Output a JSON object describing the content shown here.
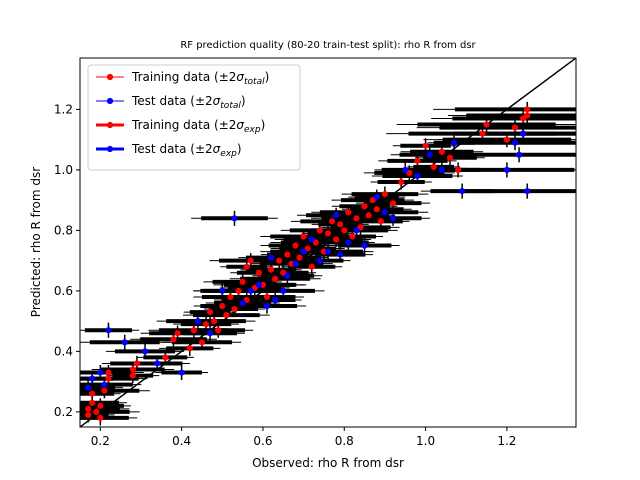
{
  "chart_data": {
    "type": "scatter",
    "title": "RF prediction quality (80-20 train-test split): rho R from dsr",
    "xlabel": "Observed: rho R from dsr",
    "ylabel": "Predicted: rho R from dsr",
    "xlim": [
      0.15,
      1.37
    ],
    "ylim": [
      0.15,
      1.37
    ],
    "xticks": [
      "0.2",
      "0.4",
      "0.6",
      "0.8",
      "1.0",
      "1.2"
    ],
    "yticks": [
      "0.2",
      "0.4",
      "0.6",
      "0.8",
      "1.0",
      "1.2"
    ],
    "legend_position": "upper-left",
    "legend": [
      {
        "label": "Training data (±2σ_total)",
        "main": "Training data (±2",
        "sym": "σ",
        "sub": "total",
        "tail": ")",
        "color": "#ff0000",
        "style": "thin"
      },
      {
        "label": "Test data (±2σ_total)",
        "main": "Test data (±2",
        "sym": "σ",
        "sub": "total",
        "tail": ")",
        "color": "#0000ff",
        "style": "thin"
      },
      {
        "label": "Training data (±2σ_exp)",
        "main": "Training data (±2",
        "sym": "σ",
        "sub": "exp",
        "tail": ")",
        "color": "#ff0000",
        "style": "thick"
      },
      {
        "label": "Test data (±2σ_exp)",
        "main": "Test data (±2",
        "sym": "σ",
        "sub": "exp",
        "tail": ")",
        "color": "#0000ff",
        "style": "thick"
      }
    ],
    "identity_line": true,
    "series": [
      {
        "name": "Training data",
        "color": "#ff0000",
        "points": [
          [
            0.17,
            0.19
          ],
          [
            0.17,
            0.21
          ],
          [
            0.18,
            0.23
          ],
          [
            0.18,
            0.26
          ],
          [
            0.19,
            0.2
          ],
          [
            0.2,
            0.18
          ],
          [
            0.2,
            0.22
          ],
          [
            0.21,
            0.27
          ],
          [
            0.22,
            0.31
          ],
          [
            0.22,
            0.33
          ],
          [
            0.28,
            0.32
          ],
          [
            0.28,
            0.34
          ],
          [
            0.29,
            0.36
          ],
          [
            0.36,
            0.38
          ],
          [
            0.38,
            0.44
          ],
          [
            0.39,
            0.46
          ],
          [
            0.42,
            0.41
          ],
          [
            0.43,
            0.47
          ],
          [
            0.45,
            0.43
          ],
          [
            0.46,
            0.49
          ],
          [
            0.47,
            0.53
          ],
          [
            0.48,
            0.5
          ],
          [
            0.49,
            0.47
          ],
          [
            0.5,
            0.55
          ],
          [
            0.51,
            0.52
          ],
          [
            0.52,
            0.58
          ],
          [
            0.53,
            0.54
          ],
          [
            0.54,
            0.6
          ],
          [
            0.55,
            0.63
          ],
          [
            0.56,
            0.57
          ],
          [
            0.56,
            0.68
          ],
          [
            0.57,
            0.7
          ],
          [
            0.58,
            0.61
          ],
          [
            0.59,
            0.66
          ],
          [
            0.6,
            0.62
          ],
          [
            0.61,
            0.58
          ],
          [
            0.62,
            0.67
          ],
          [
            0.63,
            0.64
          ],
          [
            0.64,
            0.7
          ],
          [
            0.65,
            0.66
          ],
          [
            0.66,
            0.72
          ],
          [
            0.67,
            0.69
          ],
          [
            0.68,
            0.75
          ],
          [
            0.69,
            0.71
          ],
          [
            0.7,
            0.78
          ],
          [
            0.71,
            0.74
          ],
          [
            0.72,
            0.68
          ],
          [
            0.73,
            0.76
          ],
          [
            0.74,
            0.8
          ],
          [
            0.75,
            0.73
          ],
          [
            0.76,
            0.79
          ],
          [
            0.77,
            0.83
          ],
          [
            0.78,
            0.77
          ],
          [
            0.79,
            0.82
          ],
          [
            0.8,
            0.8
          ],
          [
            0.81,
            0.86
          ],
          [
            0.82,
            0.78
          ],
          [
            0.83,
            0.84
          ],
          [
            0.84,
            0.81
          ],
          [
            0.85,
            0.88
          ],
          [
            0.86,
            0.85
          ],
          [
            0.87,
            0.9
          ],
          [
            0.88,
            0.87
          ],
          [
            0.89,
            0.83
          ],
          [
            0.9,
            0.92
          ],
          [
            0.92,
            0.89
          ],
          [
            0.94,
            0.96
          ],
          [
            0.96,
            0.99
          ],
          [
            0.98,
            1.03
          ],
          [
            1.0,
            1.08
          ],
          [
            1.02,
            1.01
          ],
          [
            1.04,
            1.06
          ],
          [
            1.06,
            1.04
          ],
          [
            1.08,
            1.0
          ],
          [
            1.14,
            1.12
          ],
          [
            1.15,
            1.15
          ],
          [
            1.2,
            1.1
          ],
          [
            1.22,
            1.14
          ],
          [
            1.24,
            1.17
          ],
          [
            1.24,
            1.12
          ],
          [
            1.25,
            1.18
          ],
          [
            1.25,
            1.2
          ]
        ]
      },
      {
        "name": "Test data",
        "color": "#0000ff",
        "points": [
          [
            0.17,
            0.28
          ],
          [
            0.18,
            0.31
          ],
          [
            0.2,
            0.33
          ],
          [
            0.21,
            0.29
          ],
          [
            0.22,
            0.47
          ],
          [
            0.26,
            0.43
          ],
          [
            0.31,
            0.4
          ],
          [
            0.34,
            0.36
          ],
          [
            0.4,
            0.33
          ],
          [
            0.44,
            0.5
          ],
          [
            0.47,
            0.46
          ],
          [
            0.5,
            0.6
          ],
          [
            0.53,
            0.84
          ],
          [
            0.55,
            0.56
          ],
          [
            0.57,
            0.6
          ],
          [
            0.59,
            0.62
          ],
          [
            0.61,
            0.55
          ],
          [
            0.62,
            0.71
          ],
          [
            0.63,
            0.57
          ],
          [
            0.65,
            0.6
          ],
          [
            0.66,
            0.65
          ],
          [
            0.68,
            0.69
          ],
          [
            0.7,
            0.73
          ],
          [
            0.72,
            0.77
          ],
          [
            0.74,
            0.7
          ],
          [
            0.76,
            0.73
          ],
          [
            0.78,
            0.85
          ],
          [
            0.79,
            0.72
          ],
          [
            0.81,
            0.76
          ],
          [
            0.83,
            0.8
          ],
          [
            0.85,
            0.75
          ],
          [
            0.88,
            0.91
          ],
          [
            0.9,
            0.86
          ],
          [
            0.92,
            0.84
          ],
          [
            0.95,
            1.0
          ],
          [
            0.98,
            0.98
          ],
          [
            1.01,
            1.05
          ],
          [
            1.04,
            1.0
          ],
          [
            1.07,
            1.09
          ],
          [
            1.09,
            0.93
          ],
          [
            1.2,
            1.0
          ],
          [
            1.22,
            1.09
          ],
          [
            1.23,
            1.05
          ],
          [
            1.24,
            1.12
          ],
          [
            1.25,
            0.93
          ]
        ]
      }
    ]
  }
}
